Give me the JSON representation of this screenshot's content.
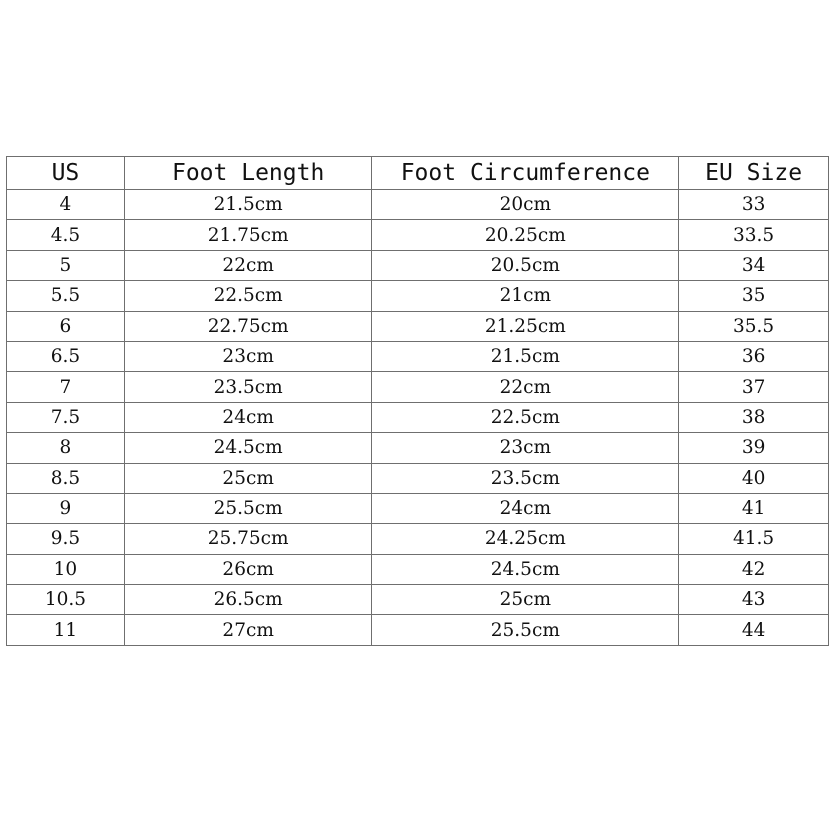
{
  "table": {
    "headers": [
      "US",
      "Foot Length",
      "Foot Circumference",
      "EU Size"
    ],
    "rows": [
      [
        "4",
        "21.5cm",
        "20cm",
        "33"
      ],
      [
        "4.5",
        "21.75cm",
        "20.25cm",
        "33.5"
      ],
      [
        "5",
        "22cm",
        "20.5cm",
        "34"
      ],
      [
        "5.5",
        "22.5cm",
        "21cm",
        "35"
      ],
      [
        "6",
        "22.75cm",
        "21.25cm",
        "35.5"
      ],
      [
        "6.5",
        "23cm",
        "21.5cm",
        "36"
      ],
      [
        "7",
        "23.5cm",
        "22cm",
        "37"
      ],
      [
        "7.5",
        "24cm",
        "22.5cm",
        "38"
      ],
      [
        "8",
        "24.5cm",
        "23cm",
        "39"
      ],
      [
        "8.5",
        "25cm",
        "23.5cm",
        "40"
      ],
      [
        "9",
        "25.5cm",
        "24cm",
        "41"
      ],
      [
        "9.5",
        "25.75cm",
        "24.25cm",
        "41.5"
      ],
      [
        "10",
        "26cm",
        "24.5cm",
        "42"
      ],
      [
        "10.5",
        "26.5cm",
        "25cm",
        "43"
      ],
      [
        "11",
        "27cm",
        "25.5cm",
        "44"
      ]
    ]
  }
}
